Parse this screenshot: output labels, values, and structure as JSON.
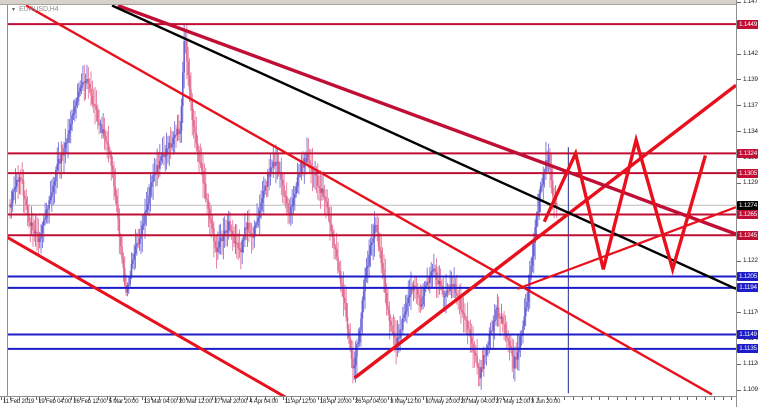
{
  "window": {
    "symbol_label": "EURUSD,H4",
    "dropdown_icon": "▼"
  },
  "colors": {
    "crimson": "#c00e35",
    "red": "#e8101c",
    "blue": "#1c1cc8",
    "black": "#000000",
    "navy": "#2a2a90",
    "bid_line": "#bcbcbc",
    "candle_up": "#6660d4",
    "candle_down": "#e2688e",
    "badge_text": "#ffffff",
    "current_badge_bg": "#000000"
  },
  "chart_data": {
    "type": "candlestick",
    "symbol": "EURUSD",
    "timeframe": "H4",
    "current_price": "1.1274",
    "y_axis": {
      "top_price": 1.14675,
      "bottom_price": 1.10895,
      "ticks": [
        "1.1470",
        "1.1445",
        "1.1420",
        "1.1395",
        "1.1370",
        "1.1345",
        "1.1320",
        "1.1295",
        "1.1270",
        "1.1245",
        "1.1220",
        "1.1195",
        "1.1170",
        "1.1145",
        "1.1120",
        "1.1095"
      ]
    },
    "x_axis": {
      "labels": [
        "11 Feb 2019",
        "19 Feb 04:00",
        "26 Feb 12:00",
        "5 Mar 20:00",
        "13 Mar 04:00",
        "20 Mar 12:00",
        "27 Mar 20:00",
        "4 Apr 04:00",
        "11 Apr 12:00",
        "18 Apr 20:00",
        "26 Apr 04:00",
        "3 May 12:00",
        "10 May 20:00",
        "20 May 04:00",
        "27 May 12:00",
        "3 Jun 20:00"
      ],
      "label_spacing_px": 35.2,
      "first_label_x": 3
    },
    "horizontal_lines": [
      {
        "price": 1.1449,
        "label": "1.1449",
        "color": "crimson"
      },
      {
        "price": 1.1324,
        "label": "1.1324",
        "color": "crimson"
      },
      {
        "price": 1.1305,
        "label": "1.1305",
        "color": "crimson"
      },
      {
        "price": 1.1265,
        "label": "1.1265",
        "color": "crimson"
      },
      {
        "price": 1.1245,
        "label": "1.1245",
        "color": "crimson"
      },
      {
        "price": 1.1205,
        "label": "1.1205",
        "color": "blue"
      },
      {
        "price": 1.1194,
        "label": "1.1194",
        "color": "blue"
      },
      {
        "price": 1.1149,
        "label": "1.1149",
        "color": "blue"
      },
      {
        "price": 1.1135,
        "label": "1.1135",
        "color": "blue"
      }
    ],
    "trend_lines": [
      {
        "name": "descending-red-steep",
        "x1": 0.026,
        "p1": 1.1467,
        "x2": 0.967,
        "p2": 1.1091,
        "color": "red",
        "w": 2.4
      },
      {
        "name": "descending-red-left",
        "x1": 0.0,
        "p1": 1.1243,
        "x2": 0.383,
        "p2": 1.1088,
        "color": "red",
        "w": 3.0
      },
      {
        "name": "ascending-red-major",
        "x1": 0.477,
        "p1": 1.1107,
        "x2": 1.0,
        "p2": 1.139,
        "color": "red",
        "w": 3.4
      },
      {
        "name": "descending-crimson-thick",
        "x1": 0.152,
        "p1": 1.1467,
        "x2": 1.0,
        "p2": 1.1246,
        "color": "crimson",
        "w": 3.4
      },
      {
        "name": "descending-black",
        "x1": 0.144,
        "p1": 1.1467,
        "x2": 1.0,
        "p2": 1.1193,
        "color": "black",
        "w": 2.4
      },
      {
        "name": "ascending-red-minor",
        "x1": 0.7,
        "p1": 1.1193,
        "x2": 1.0,
        "p2": 1.1272,
        "color": "red",
        "w": 2.2
      }
    ],
    "zigzag_projection": {
      "color": "red",
      "w": 3.4,
      "points": [
        [
          0.737,
          1.1258
        ],
        [
          0.78,
          1.1324
        ],
        [
          0.818,
          1.1212
        ],
        [
          0.863,
          1.1337
        ],
        [
          0.913,
          1.1212
        ],
        [
          0.958,
          1.1322
        ]
      ]
    },
    "vertical_line": {
      "x": 0.77,
      "p1": 1.133,
      "p2": 1.1092,
      "color": "navy",
      "w": 1
    },
    "price_path": [
      [
        3,
        1.1272
      ],
      [
        9,
        1.129
      ],
      [
        15,
        1.1302
      ],
      [
        21,
        1.1268
      ],
      [
        27,
        1.1252
      ],
      [
        33,
        1.124
      ],
      [
        39,
        1.1262
      ],
      [
        45,
        1.128
      ],
      [
        51,
        1.131
      ],
      [
        57,
        1.1325
      ],
      [
        63,
        1.1345
      ],
      [
        69,
        1.1365
      ],
      [
        75,
        1.139
      ],
      [
        81,
        1.14
      ],
      [
        87,
        1.1375
      ],
      [
        93,
        1.1355
      ],
      [
        99,
        1.134
      ],
      [
        105,
        1.132
      ],
      [
        111,
        1.127
      ],
      [
        117,
        1.1215
      ],
      [
        121,
        1.1188
      ],
      [
        127,
        1.1225
      ],
      [
        133,
        1.124
      ],
      [
        139,
        1.1262
      ],
      [
        145,
        1.1295
      ],
      [
        151,
        1.131
      ],
      [
        157,
        1.132
      ],
      [
        163,
        1.133
      ],
      [
        169,
        1.134
      ],
      [
        175,
        1.135
      ],
      [
        179,
        1.1445
      ],
      [
        183,
        1.139
      ],
      [
        187,
        1.1355
      ],
      [
        193,
        1.132
      ],
      [
        199,
        1.129
      ],
      [
        205,
        1.1258
      ],
      [
        211,
        1.1228
      ],
      [
        217,
        1.1245
      ],
      [
        223,
        1.1255
      ],
      [
        229,
        1.124
      ],
      [
        235,
        1.1232
      ],
      [
        241,
        1.1255
      ],
      [
        247,
        1.1245
      ],
      [
        253,
        1.1262
      ],
      [
        259,
        1.129
      ],
      [
        265,
        1.131
      ],
      [
        271,
        1.1318
      ],
      [
        277,
        1.129
      ],
      [
        283,
        1.1265
      ],
      [
        289,
        1.1288
      ],
      [
        295,
        1.131
      ],
      [
        301,
        1.132
      ],
      [
        307,
        1.1308
      ],
      [
        313,
        1.1295
      ],
      [
        319,
        1.1278
      ],
      [
        325,
        1.1255
      ],
      [
        331,
        1.1222
      ],
      [
        337,
        1.119
      ],
      [
        343,
        1.115
      ],
      [
        348,
        1.1113
      ],
      [
        353,
        1.1148
      ],
      [
        359,
        1.12
      ],
      [
        365,
        1.1235
      ],
      [
        370,
        1.1256
      ],
      [
        375,
        1.1225
      ],
      [
        381,
        1.118
      ],
      [
        387,
        1.1148
      ],
      [
        391,
        1.1138
      ],
      [
        397,
        1.1162
      ],
      [
        403,
        1.1185
      ],
      [
        409,
        1.1198
      ],
      [
        415,
        1.1175
      ],
      [
        421,
        1.1198
      ],
      [
        427,
        1.1212
      ],
      [
        433,
        1.12
      ],
      [
        439,
        1.1185
      ],
      [
        445,
        1.12
      ],
      [
        451,
        1.119
      ],
      [
        457,
        1.117
      ],
      [
        463,
        1.1155
      ],
      [
        469,
        1.113
      ],
      [
        474,
        1.1108
      ],
      [
        479,
        1.1128
      ],
      [
        485,
        1.115
      ],
      [
        491,
        1.1172
      ],
      [
        497,
        1.116
      ],
      [
        503,
        1.114
      ],
      [
        508,
        1.112
      ],
      [
        513,
        1.1135
      ],
      [
        519,
        1.1165
      ],
      [
        524,
        1.1205
      ],
      [
        529,
        1.1245
      ],
      [
        534,
        1.1285
      ],
      [
        539,
        1.131
      ],
      [
        543,
        1.132
      ],
      [
        546,
        1.1295
      ],
      [
        549,
        1.127
      ],
      [
        551,
        1.1274
      ]
    ]
  }
}
